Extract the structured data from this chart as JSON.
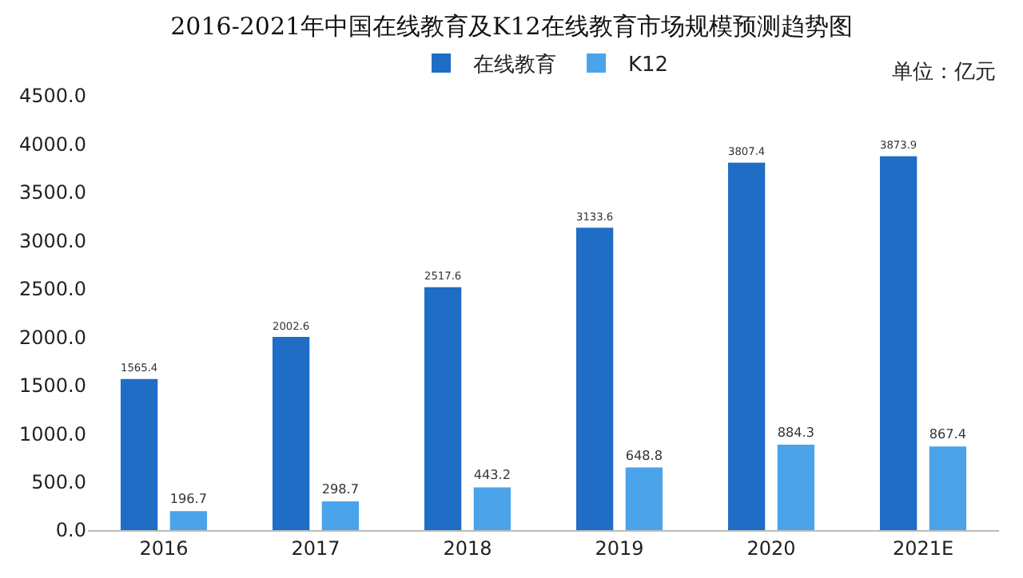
{
  "chart_data": {
    "type": "bar",
    "title": "2016-2021年中国在线教育及K12在线教育市场规模预测趋势图",
    "annotations": [
      "单位：亿元"
    ],
    "categories": [
      "2016",
      "2017",
      "2018",
      "2019",
      "2020",
      "2021E"
    ],
    "series": [
      {
        "name": "在线教育",
        "color": "#1f6dc4",
        "values": [
          1565.4,
          2002.6,
          2517.6,
          3133.6,
          3807.4,
          3873.9
        ]
      },
      {
        "name": "K12",
        "color": "#4ba3ea",
        "values": [
          196.7,
          298.7,
          443.2,
          648.8,
          884.3,
          867.4
        ]
      }
    ],
    "ylim": [
      0,
      4500
    ],
    "yticks": [
      {
        "value": 0,
        "label": "0.0"
      },
      {
        "value": 500,
        "label": "500.0"
      },
      {
        "value": 1000,
        "label": "1000.0"
      },
      {
        "value": 1500,
        "label": "1500.0"
      },
      {
        "value": 2000,
        "label": "2000.0"
      },
      {
        "value": 2500,
        "label": "2500.0"
      },
      {
        "value": 3000,
        "label": "3000.0"
      },
      {
        "value": 3500,
        "label": "3500.0"
      },
      {
        "value": 4000,
        "label": "4000.0"
      },
      {
        "value": 4500,
        "label": "4500.0"
      }
    ],
    "grid": false,
    "legend": "top",
    "data_labels": true
  }
}
